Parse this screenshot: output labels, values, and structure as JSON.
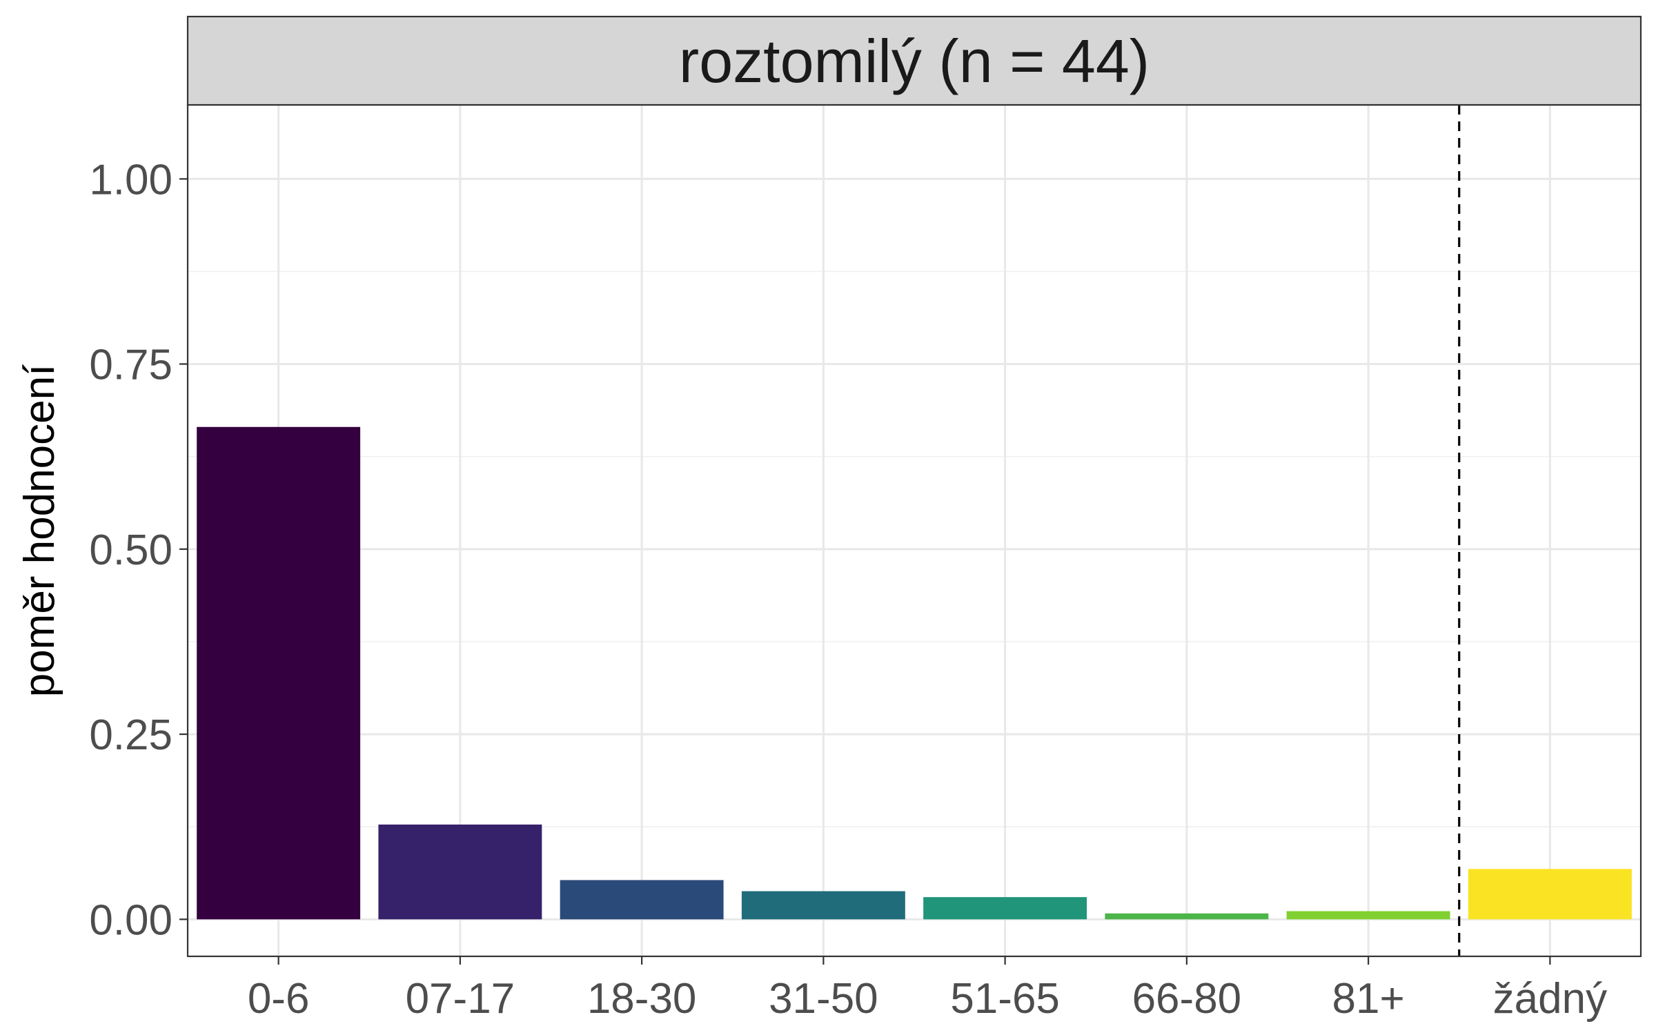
{
  "chart_data": {
    "type": "bar",
    "facet_title": "roztomilý (n = 44)",
    "title": "",
    "xlabel": "",
    "ylabel": "poměr hodnocení",
    "categories": [
      "0-6",
      "07-17",
      "18-30",
      "31-50",
      "51-65",
      "66-80",
      "81+",
      "žádný"
    ],
    "values": [
      0.665,
      0.128,
      0.053,
      0.038,
      0.03,
      0.008,
      0.011,
      0.068
    ],
    "colors": [
      "#35003F",
      "#35226A",
      "#2A4A7A",
      "#206C7A",
      "#20957A",
      "#4CB54A",
      "#80D031",
      "#FAE322"
    ],
    "ylim": [
      -0.05,
      1.1
    ],
    "yticks": [
      0.0,
      0.25,
      0.5,
      0.75,
      1.0
    ],
    "ytick_labels": [
      "0.00",
      "0.25",
      "0.50",
      "0.75",
      "1.00"
    ],
    "yminor": [
      0.125,
      0.375,
      0.625,
      0.875
    ],
    "separator_after_index": 6,
    "grid": true,
    "legend": "none"
  }
}
